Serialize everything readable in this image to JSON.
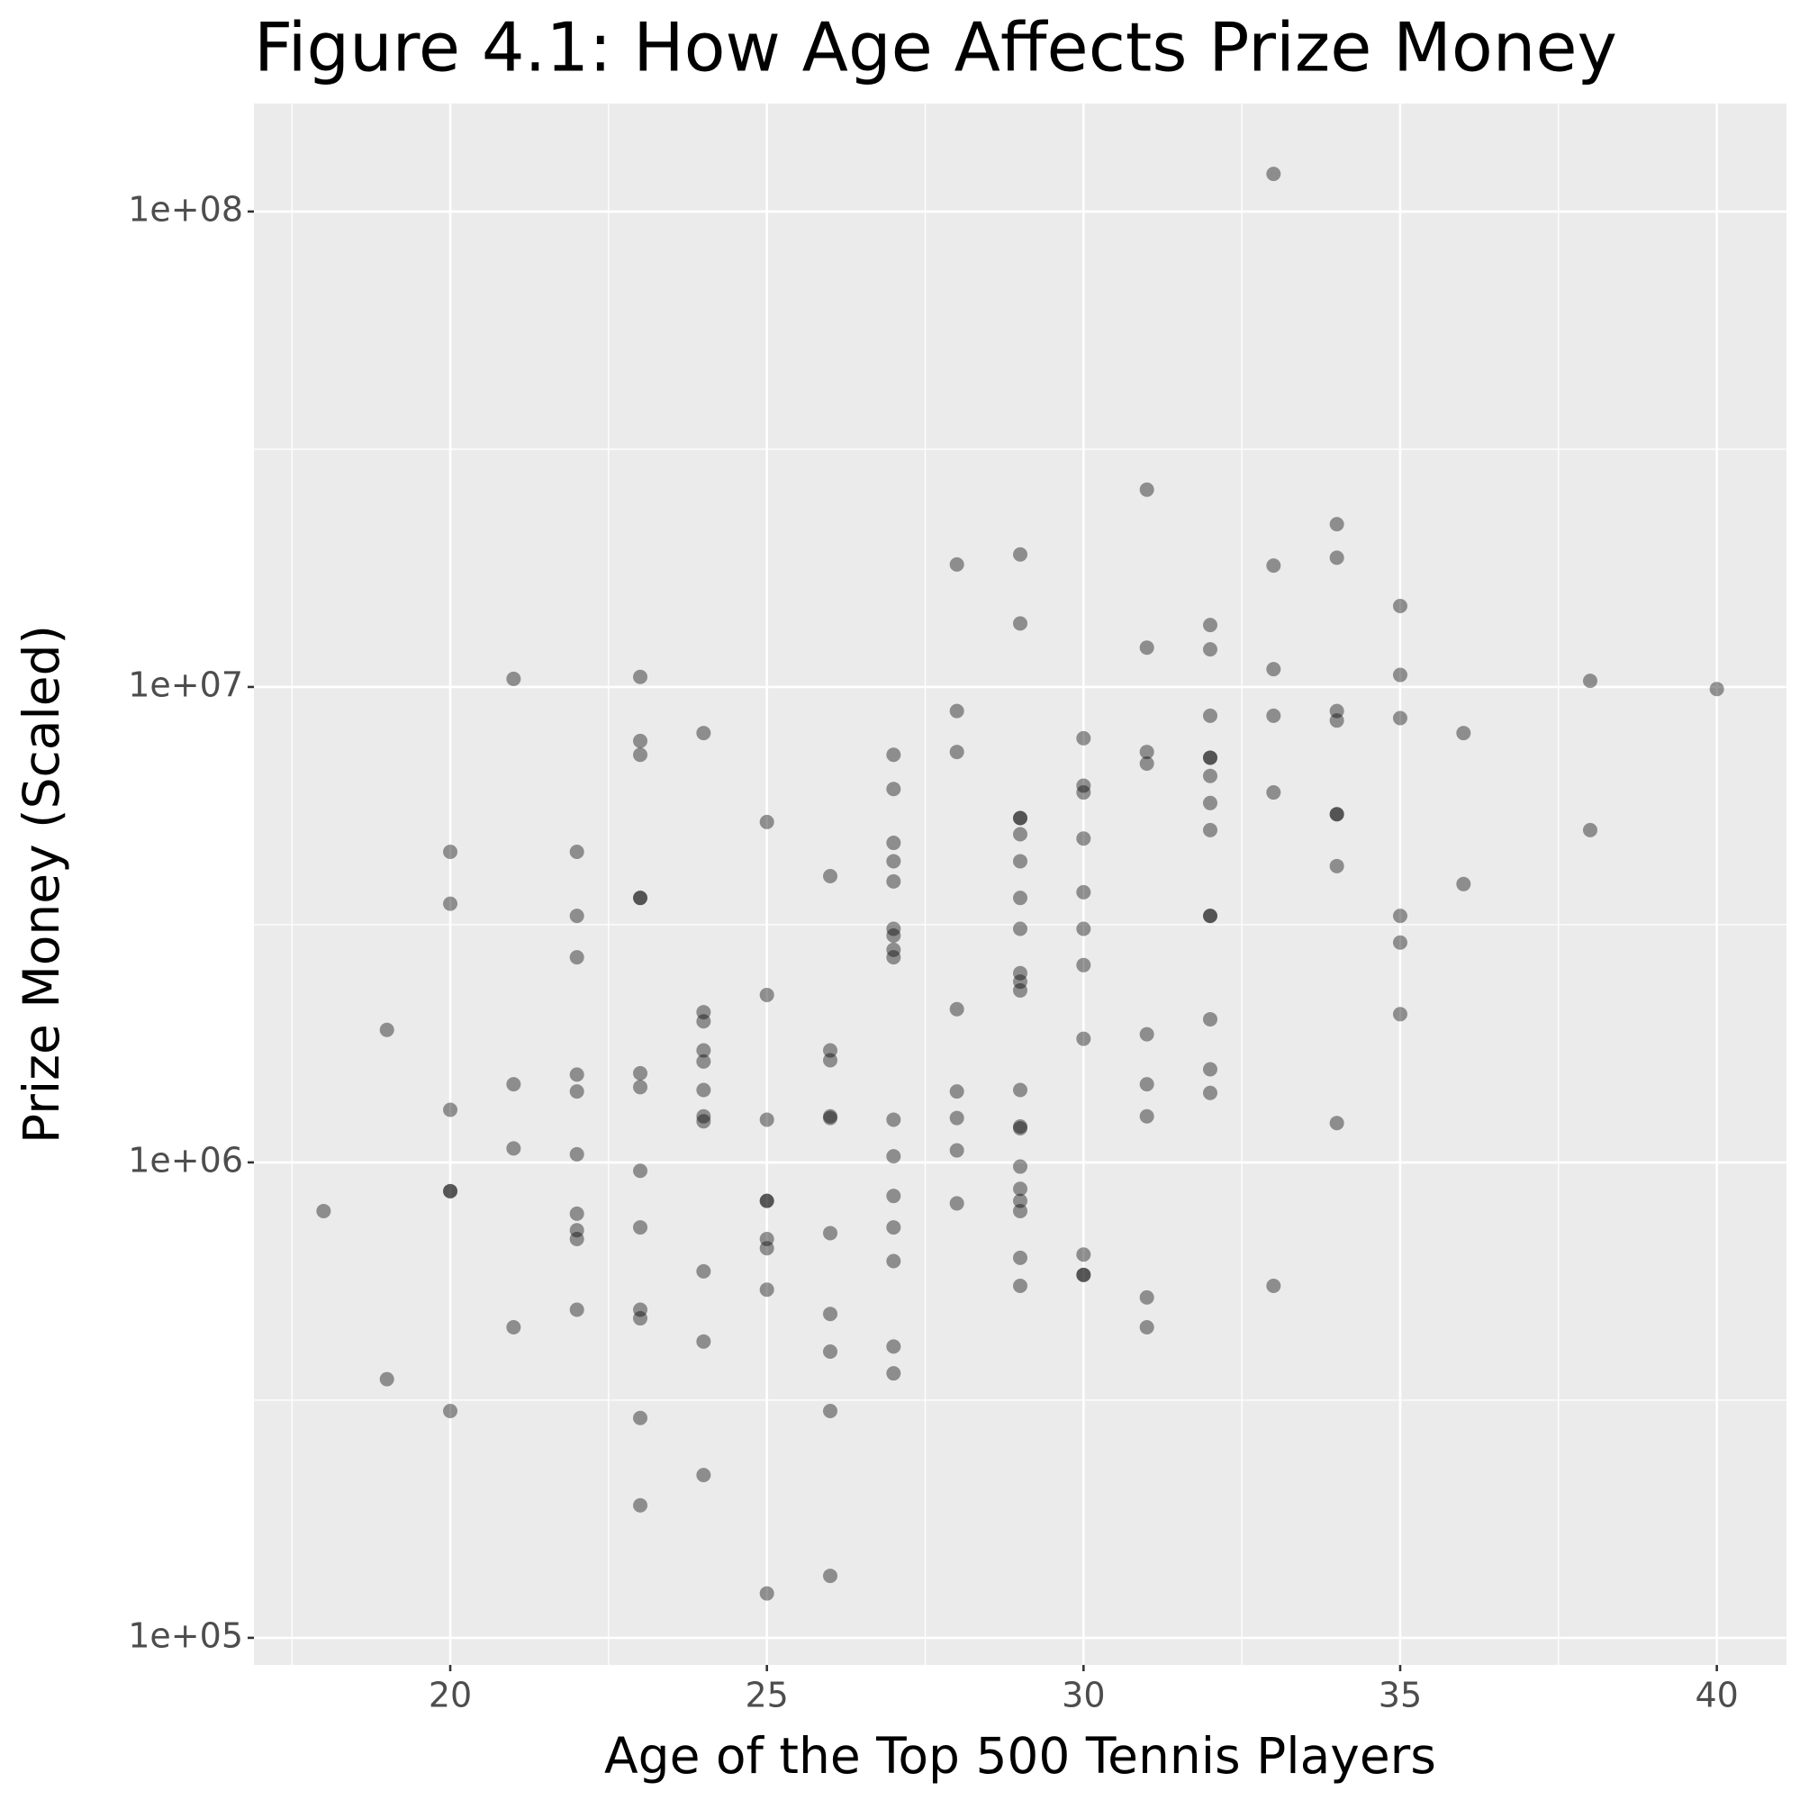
{
  "chart_data": {
    "type": "scatter",
    "title": "Figure 4.1: How Age Affects Prize Money",
    "x_label": "Age of the Top 500 Tennis Players",
    "y_label": "Prize Money (Scaled)",
    "log_y": true,
    "grid": true,
    "color": "#000000",
    "opacity": 0.4,
    "xlim": [
      16.9,
      41.1
    ],
    "ylim": [
      87700,
      168700000
    ],
    "xticks": [
      20,
      25,
      30,
      35,
      40
    ],
    "yticks": [
      {
        "value": 100000,
        "label": "1e+05"
      },
      {
        "value": 1000000,
        "label": "1e+06"
      },
      {
        "value": 10000000,
        "label": "1e+07"
      },
      {
        "value": 100000000,
        "label": "1e+08"
      }
    ],
    "x": [
      18,
      19,
      19,
      20,
      20,
      20,
      20,
      20,
      20,
      21,
      21,
      21,
      21,
      22,
      22,
      22,
      22,
      22,
      22,
      22,
      22,
      22,
      22,
      23,
      23,
      23,
      23,
      23,
      23,
      23,
      23,
      23,
      23,
      23,
      23,
      23,
      24,
      24,
      24,
      24,
      24,
      24,
      24,
      24,
      24,
      24,
      24,
      25,
      25,
      25,
      25,
      25,
      25,
      25,
      25,
      25,
      26,
      26,
      26,
      26,
      26,
      26,
      26,
      26,
      26,
      26,
      27,
      27,
      27,
      27,
      27,
      27,
      27,
      27,
      27,
      27,
      27,
      27,
      27,
      27,
      27,
      27,
      28,
      28,
      28,
      28,
      28,
      28,
      28,
      28,
      29,
      29,
      29,
      29,
      29,
      29,
      29,
      29,
      29,
      29,
      29,
      29,
      29,
      29,
      29,
      29,
      29,
      29,
      29,
      29,
      30,
      30,
      30,
      30,
      30,
      30,
      30,
      30,
      30,
      30,
      30,
      31,
      31,
      31,
      31,
      31,
      31,
      31,
      31,
      31,
      32,
      32,
      32,
      32,
      32,
      32,
      32,
      32,
      32,
      32,
      32,
      32,
      32,
      33,
      33,
      33,
      33,
      33,
      33,
      34,
      34,
      34,
      34,
      34,
      34,
      34,
      34,
      35,
      35,
      35,
      35,
      35,
      35,
      36,
      36,
      38,
      38,
      40
    ],
    "y": [
      790000,
      1900000,
      350000,
      4500000,
      3500000,
      1290000,
      870000,
      870000,
      300000,
      10400000,
      1460000,
      1070000,
      450000,
      4500000,
      3300000,
      2700000,
      1530000,
      1410000,
      1040000,
      780000,
      720000,
      690000,
      490000,
      10500000,
      7700000,
      7200000,
      3600000,
      3600000,
      1540000,
      1440000,
      960000,
      730000,
      490000,
      470000,
      290000,
      190000,
      8000000,
      2070000,
      1980000,
      1720000,
      1630000,
      1420000,
      1250000,
      1220000,
      590000,
      420000,
      220000,
      5200000,
      2250000,
      1230000,
      830000,
      830000,
      690000,
      660000,
      540000,
      124000,
      4000000,
      1720000,
      1640000,
      1250000,
      1240000,
      710000,
      480000,
      400000,
      300000,
      135000,
      7200000,
      6100000,
      4700000,
      4300000,
      3900000,
      3100000,
      3000000,
      2800000,
      2700000,
      1230000,
      1030000,
      850000,
      730000,
      620000,
      410000,
      360000,
      18100000,
      8900000,
      7300000,
      2100000,
      1410000,
      1240000,
      1060000,
      820000,
      19000000,
      13600000,
      5300000,
      5300000,
      4900000,
      4300000,
      3600000,
      3100000,
      2500000,
      2400000,
      2300000,
      1420000,
      1190000,
      1180000,
      980000,
      880000,
      830000,
      790000,
      630000,
      550000,
      7800000,
      6200000,
      6000000,
      4800000,
      3700000,
      3100000,
      2600000,
      1820000,
      640000,
      580000,
      580000,
      26000000,
      12100000,
      7300000,
      6900000,
      1860000,
      1460000,
      1250000,
      520000,
      450000,
      13500000,
      12000000,
      8700000,
      7100000,
      7100000,
      6500000,
      5700000,
      5000000,
      3300000,
      3300000,
      2000000,
      1570000,
      1400000,
      120000000,
      18000000,
      10900000,
      8700000,
      6000000,
      550000,
      22000000,
      18700000,
      8900000,
      8500000,
      5400000,
      5400000,
      4200000,
      1210000,
      14800000,
      10600000,
      8600000,
      3300000,
      2900000,
      2050000,
      8000000,
      3850000,
      10300000,
      5000000,
      9900000
    ]
  }
}
